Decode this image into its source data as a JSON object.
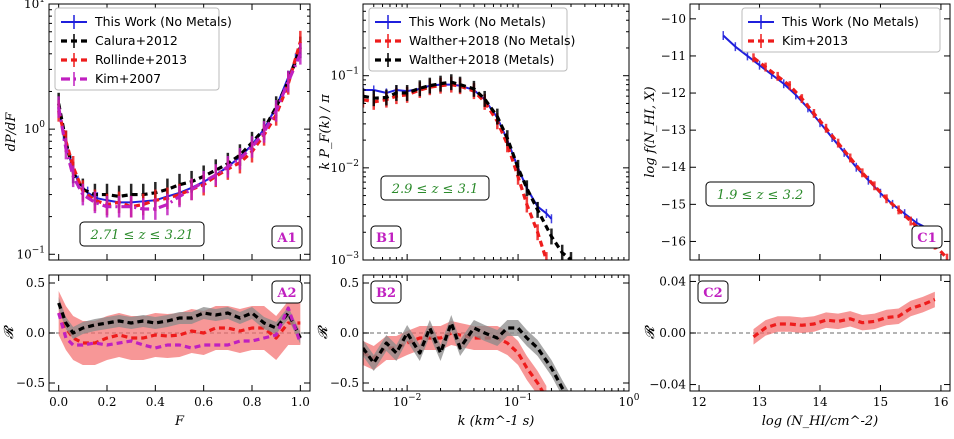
{
  "colors": {
    "this_work": "#1f1fdc",
    "black": "#000000",
    "red": "#ee1c1c",
    "magenta": "#c020c0",
    "green_text": "#2a8a2a",
    "tag_magenta": "#c020c0",
    "band_red": "#f36b6b",
    "band_grey": "#8a8a8a"
  },
  "chart_data": [
    {
      "id": "A1",
      "type": "line",
      "tag": "A1",
      "ylabel": "dP/dF",
      "yscale": "log",
      "ylim": [
        0.09,
        10
      ],
      "xlim": [
        -0.04,
        1.04
      ],
      "yticks": [
        0.1,
        1,
        10
      ],
      "yticklabels": [
        "10^-1",
        "10^0",
        "10^1"
      ],
      "redshift_label": "2.71 ≤ z ≤ 3.21",
      "legend": [
        "This Work (No Metals)",
        "Calura+2012",
        "Rollinde+2013",
        "Kim+2007"
      ],
      "series": [
        {
          "name": "This Work (No Metals)",
          "color": "this_work",
          "style": "solid",
          "x": [
            0.0,
            0.02,
            0.05,
            0.08,
            0.12,
            0.16,
            0.2,
            0.25,
            0.3,
            0.35,
            0.4,
            0.45,
            0.5,
            0.55,
            0.6,
            0.65,
            0.7,
            0.75,
            0.8,
            0.85,
            0.9,
            0.95,
            0.98,
            1.0
          ],
          "y": [
            1.5,
            0.9,
            0.55,
            0.38,
            0.31,
            0.28,
            0.27,
            0.26,
            0.26,
            0.265,
            0.27,
            0.29,
            0.31,
            0.34,
            0.38,
            0.43,
            0.5,
            0.6,
            0.75,
            1.0,
            1.5,
            2.6,
            3.6,
            4.3
          ]
        },
        {
          "name": "Calura+2012",
          "color": "black",
          "style": "dash",
          "x": [
            0.0,
            0.03,
            0.06,
            0.1,
            0.15,
            0.2,
            0.25,
            0.3,
            0.35,
            0.4,
            0.45,
            0.5,
            0.55,
            0.6,
            0.65,
            0.7,
            0.75,
            0.8,
            0.85,
            0.9,
            0.95,
            1.0
          ],
          "y": [
            1.6,
            0.8,
            0.45,
            0.33,
            0.3,
            0.3,
            0.29,
            0.3,
            0.3,
            0.31,
            0.33,
            0.36,
            0.38,
            0.42,
            0.47,
            0.53,
            0.62,
            0.78,
            1.0,
            1.5,
            2.4,
            4.5
          ]
        },
        {
          "name": "Rollinde+2013",
          "color": "red",
          "style": "dash",
          "x": [
            0.0,
            0.03,
            0.06,
            0.1,
            0.15,
            0.2,
            0.25,
            0.3,
            0.35,
            0.4,
            0.45,
            0.5,
            0.55,
            0.6,
            0.65,
            0.7,
            0.75,
            0.8,
            0.85,
            0.9,
            0.95,
            1.0
          ],
          "y": [
            1.4,
            0.8,
            0.5,
            0.32,
            0.27,
            0.25,
            0.26,
            0.24,
            0.25,
            0.27,
            0.28,
            0.3,
            0.33,
            0.36,
            0.42,
            0.48,
            0.54,
            0.66,
            0.9,
            1.3,
            2.3,
            5.0
          ]
        },
        {
          "name": "Kim+2007",
          "color": "magenta",
          "style": "dashdot",
          "x": [
            0.0,
            0.03,
            0.06,
            0.1,
            0.15,
            0.2,
            0.25,
            0.3,
            0.35,
            0.4,
            0.45,
            0.5,
            0.55,
            0.6,
            0.65,
            0.7,
            0.75,
            0.8,
            0.85,
            0.9,
            0.95,
            1.0
          ],
          "y": [
            1.5,
            0.7,
            0.42,
            0.3,
            0.26,
            0.24,
            0.24,
            0.24,
            0.23,
            0.23,
            0.25,
            0.29,
            0.33,
            0.38,
            0.43,
            0.5,
            0.58,
            0.72,
            0.95,
            1.4,
            2.4,
            4.0
          ]
        }
      ]
    },
    {
      "id": "A2",
      "type": "line",
      "tag": "A2",
      "ylabel": "R",
      "xlabel": "F",
      "ylim": [
        -0.58,
        0.58
      ],
      "xlim": [
        -0.04,
        1.04
      ],
      "xticks": [
        0.0,
        0.2,
        0.4,
        0.6,
        0.8,
        1.0
      ],
      "xticklabels": [
        "0.0",
        "0.2",
        "0.4",
        "0.6",
        "0.8",
        "1.0"
      ],
      "yticks": [
        -0.5,
        0.0,
        0.5
      ],
      "yticklabels": [
        "−0.5",
        "0.0",
        "0.5"
      ],
      "series": [
        {
          "name": "Rollinde+2013",
          "color": "red",
          "x": [
            0.0,
            0.03,
            0.06,
            0.1,
            0.15,
            0.2,
            0.25,
            0.3,
            0.35,
            0.4,
            0.45,
            0.5,
            0.55,
            0.6,
            0.65,
            0.7,
            0.75,
            0.8,
            0.85,
            0.9,
            0.95,
            1.0
          ],
          "y": [
            0.2,
            0.05,
            -0.05,
            -0.1,
            -0.1,
            -0.05,
            -0.02,
            -0.05,
            -0.05,
            -0.02,
            -0.03,
            -0.02,
            0.02,
            0.0,
            0.05,
            0.05,
            0.02,
            0.05,
            0.05,
            -0.05,
            0.1,
            0.1
          ],
          "band": 0.22
        },
        {
          "name": "Calura+2012",
          "color": "black",
          "x": [
            0.0,
            0.03,
            0.06,
            0.1,
            0.15,
            0.2,
            0.25,
            0.3,
            0.35,
            0.4,
            0.45,
            0.5,
            0.55,
            0.6,
            0.65,
            0.7,
            0.75,
            0.8,
            0.85,
            0.9,
            0.95,
            1.0
          ],
          "y": [
            0.3,
            0.1,
            0.0,
            0.05,
            0.08,
            0.1,
            0.12,
            0.1,
            0.12,
            0.1,
            0.12,
            0.15,
            0.15,
            0.2,
            0.18,
            0.2,
            0.15,
            0.2,
            0.1,
            0.05,
            0.2,
            -0.05
          ],
          "band": 0.06
        },
        {
          "name": "Kim+2007",
          "color": "magenta",
          "x": [
            0.0,
            0.03,
            0.06,
            0.1,
            0.15,
            0.2,
            0.25,
            0.3,
            0.35,
            0.4,
            0.45,
            0.5,
            0.55,
            0.6,
            0.65,
            0.7,
            0.75,
            0.8,
            0.85,
            0.9,
            0.95,
            1.0
          ],
          "y": [
            0.2,
            -0.05,
            -0.12,
            -0.12,
            -0.1,
            -0.12,
            -0.1,
            -0.08,
            -0.12,
            -0.15,
            -0.12,
            -0.12,
            -0.15,
            -0.12,
            -0.12,
            -0.12,
            -0.08,
            -0.08,
            -0.05,
            -0.02,
            0.25,
            -0.1
          ]
        }
      ]
    },
    {
      "id": "B1",
      "type": "line",
      "tag": "B1",
      "ylabel": "k P_F(k) / π",
      "yscale": "log",
      "xscale": "log",
      "ylim": [
        0.001,
        0.6
      ],
      "xlim": [
        0.004,
        1.0
      ],
      "yticks": [
        0.001,
        0.01,
        0.1
      ],
      "yticklabels": [
        "10^-3",
        "10^-2",
        "10^-1"
      ],
      "redshift_label": "2.9 ≤ z ≤ 3.1",
      "legend": [
        "This Work (No Metals)",
        "Walther+2018 (No Metals)",
        "Walther+2018 (Metals)"
      ],
      "series": [
        {
          "name": "This Work (No Metals)",
          "color": "this_work",
          "x": [
            0.004,
            0.005,
            0.0065,
            0.008,
            0.01,
            0.013,
            0.016,
            0.02,
            0.025,
            0.03,
            0.04,
            0.05,
            0.065,
            0.08,
            0.1,
            0.12,
            0.15,
            0.18,
            0.2
          ],
          "y": [
            0.07,
            0.07,
            0.065,
            0.07,
            0.068,
            0.072,
            0.078,
            0.08,
            0.08,
            0.078,
            0.07,
            0.055,
            0.035,
            0.02,
            0.01,
            0.006,
            0.0038,
            0.0032,
            0.0028
          ]
        },
        {
          "name": "Walther+2018 (No Metals)",
          "color": "red",
          "x": [
            0.004,
            0.005,
            0.0065,
            0.008,
            0.01,
            0.013,
            0.016,
            0.02,
            0.025,
            0.03,
            0.04,
            0.05,
            0.065,
            0.08,
            0.1,
            0.12,
            0.15,
            0.18
          ],
          "y": [
            0.055,
            0.052,
            0.055,
            0.06,
            0.062,
            0.07,
            0.075,
            0.078,
            0.08,
            0.077,
            0.068,
            0.052,
            0.032,
            0.018,
            0.008,
            0.004,
            0.002,
            0.001
          ]
        },
        {
          "name": "Walther+2018 (Metals)",
          "color": "black",
          "x": [
            0.004,
            0.005,
            0.0065,
            0.008,
            0.01,
            0.013,
            0.016,
            0.02,
            0.025,
            0.03,
            0.04,
            0.05,
            0.065,
            0.08,
            0.1,
            0.12,
            0.15,
            0.2,
            0.25,
            0.3
          ],
          "y": [
            0.06,
            0.057,
            0.058,
            0.065,
            0.065,
            0.073,
            0.078,
            0.082,
            0.085,
            0.08,
            0.072,
            0.056,
            0.036,
            0.021,
            0.01,
            0.006,
            0.0035,
            0.0018,
            0.0012,
            0.001
          ]
        }
      ]
    },
    {
      "id": "B2",
      "type": "line",
      "tag": "B2",
      "ylabel": "R",
      "xlabel": "k (km^-1 s)",
      "xscale": "log",
      "ylim": [
        -0.58,
        0.58
      ],
      "xlim": [
        0.004,
        1.0
      ],
      "xticks": [
        0.01,
        0.1,
        1.0
      ],
      "xticklabels": [
        "10^-2",
        "10^-1",
        "10^0"
      ],
      "yticks": [
        -0.5,
        0.0,
        0.5
      ],
      "yticklabels": [
        "−0.5",
        "0.0",
        "0.5"
      ],
      "series": [
        {
          "name": "Walther+2018 (No Metals)",
          "color": "red",
          "x": [
            0.004,
            0.005,
            0.0065,
            0.008,
            0.01,
            0.013,
            0.016,
            0.02,
            0.025,
            0.03,
            0.04,
            0.05,
            0.065,
            0.08,
            0.1,
            0.12,
            0.15,
            0.18
          ],
          "y": [
            -0.2,
            -0.25,
            -0.15,
            -0.15,
            -0.1,
            -0.05,
            -0.05,
            -0.05,
            0.0,
            -0.02,
            -0.05,
            -0.05,
            -0.05,
            -0.1,
            -0.2,
            -0.35,
            -0.5,
            -0.65
          ],
          "band": 0.12
        },
        {
          "name": "Walther+2018 (Metals)",
          "color": "black",
          "x": [
            0.004,
            0.005,
            0.0065,
            0.008,
            0.01,
            0.013,
            0.016,
            0.02,
            0.025,
            0.03,
            0.04,
            0.05,
            0.065,
            0.08,
            0.1,
            0.12,
            0.15,
            0.2,
            0.25,
            0.3
          ],
          "y": [
            -0.15,
            -0.3,
            -0.1,
            -0.2,
            0.0,
            -0.2,
            0.05,
            -0.2,
            0.1,
            -0.15,
            0.05,
            0.0,
            -0.05,
            0.05,
            0.05,
            -0.05,
            -0.15,
            -0.35,
            -0.55,
            -0.7
          ],
          "band": 0.08
        }
      ]
    },
    {
      "id": "C1",
      "type": "line",
      "tag": "C1",
      "ylabel": "log f(N_HI, X)",
      "xlim": [
        11.85,
        16.15
      ],
      "ylim": [
        -16.5,
        -9.6
      ],
      "yticks": [
        -16,
        -15,
        -14,
        -13,
        -12,
        -11,
        -10
      ],
      "yticklabels": [
        "−16",
        "−15",
        "−14",
        "−13",
        "−12",
        "−11",
        "−10"
      ],
      "redshift_label": "1.9 ≤ z ≤ 3.2",
      "legend": [
        "This Work (No Metals)",
        "Kim+2013"
      ],
      "series": [
        {
          "name": "This Work (No Metals)",
          "color": "this_work",
          "x": [
            12.4,
            12.6,
            12.8,
            13.0,
            13.2,
            13.4,
            13.6,
            13.8,
            14.0,
            14.2,
            14.4,
            14.6,
            14.8,
            15.0,
            15.2,
            15.4,
            15.6,
            15.9
          ],
          "y": [
            -10.45,
            -10.75,
            -11.0,
            -11.25,
            -11.5,
            -11.75,
            -12.05,
            -12.4,
            -12.8,
            -13.2,
            -13.6,
            -14.0,
            -14.35,
            -14.7,
            -15.0,
            -15.25,
            -15.5,
            -15.75
          ]
        },
        {
          "name": "Kim+2013",
          "color": "red",
          "x": [
            12.9,
            13.1,
            13.3,
            13.5,
            13.7,
            13.9,
            14.1,
            14.3,
            14.5,
            14.7,
            14.9,
            15.1,
            15.3,
            15.5,
            15.7,
            15.9,
            16.1
          ],
          "y": [
            -11.05,
            -11.3,
            -11.55,
            -11.8,
            -12.15,
            -12.55,
            -12.95,
            -13.35,
            -13.75,
            -14.15,
            -14.5,
            -14.85,
            -15.15,
            -15.45,
            -15.75,
            -16.1,
            -16.45
          ]
        }
      ]
    },
    {
      "id": "C2",
      "type": "line",
      "tag": "C2",
      "ylabel": "R",
      "xlabel": "log (N_HI/cm^-2)",
      "xlim": [
        11.85,
        16.15
      ],
      "ylim": [
        -0.045,
        0.045
      ],
      "xticks": [
        12,
        13,
        14,
        15,
        16
      ],
      "xticklabels": [
        "12",
        "13",
        "14",
        "15",
        "16"
      ],
      "yticks": [
        -0.04,
        0.0,
        0.04
      ],
      "yticklabels": [
        "−0.04",
        "0.00",
        "0.04"
      ],
      "series": [
        {
          "name": "Kim+2013",
          "color": "red",
          "x": [
            12.9,
            13.1,
            13.3,
            13.5,
            13.7,
            13.9,
            14.1,
            14.3,
            14.5,
            14.7,
            14.9,
            15.1,
            15.3,
            15.5,
            15.7,
            15.9
          ],
          "y": [
            -0.003,
            0.004,
            0.007,
            0.007,
            0.006,
            0.007,
            0.01,
            0.009,
            0.011,
            0.008,
            0.009,
            0.012,
            0.013,
            0.019,
            0.022,
            0.026
          ],
          "band": 0.006
        }
      ]
    }
  ]
}
